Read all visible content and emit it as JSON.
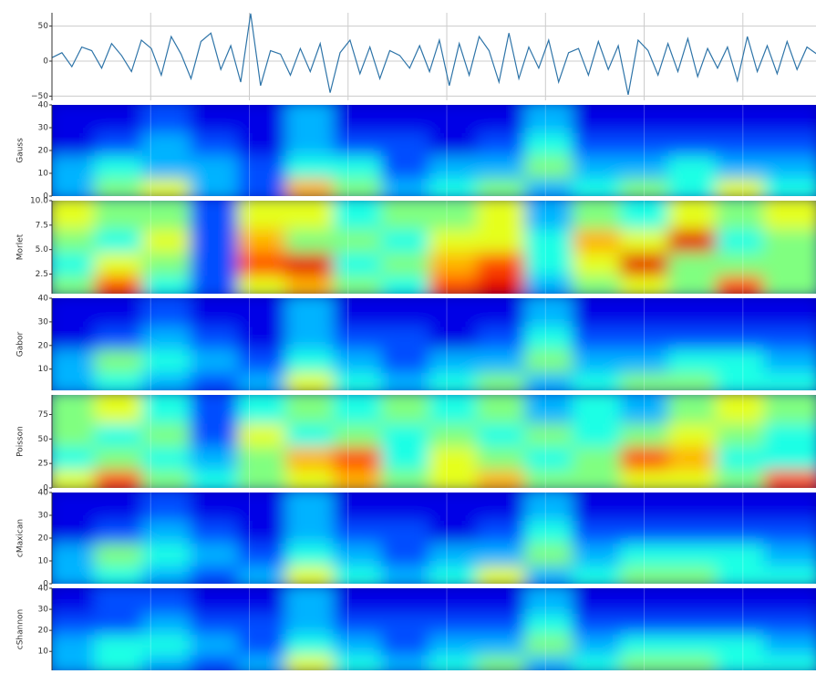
{
  "chart_data": [
    {
      "type": "line",
      "values": [
        5,
        12,
        -8,
        20,
        15,
        -10,
        25,
        8,
        -15,
        30,
        18,
        -20,
        35,
        10,
        -25,
        28,
        40,
        -12,
        22,
        -30,
        68,
        -35,
        15,
        10,
        -20,
        18,
        -15,
        25,
        -45,
        12,
        30,
        -18,
        20,
        -25,
        15,
        8,
        -10,
        22,
        -15,
        30,
        -35,
        25,
        -20,
        35,
        15,
        -30,
        40,
        -25,
        20,
        -10,
        30,
        -30,
        12,
        18,
        -20,
        28,
        -12,
        22,
        -48,
        30,
        15,
        -20,
        25,
        -15,
        32,
        -22,
        18,
        -10,
        20,
        -28,
        35,
        -15,
        22,
        -18,
        28,
        -12,
        20,
        10
      ],
      "color": "#2e74a8",
      "ylim": [
        -56,
        69
      ],
      "yticks": [
        {
          "value": -50,
          "label": "−50"
        },
        0,
        50
      ],
      "xlim": [
        0,
        775
      ],
      "xticks": [
        100,
        200,
        300,
        400,
        500,
        600,
        700
      ],
      "grid": true
    },
    {
      "type": "heatmap",
      "ylabel": "Gauss",
      "colormap": "jet",
      "ylim": [
        0,
        40
      ],
      "yticks": [
        0,
        10,
        20,
        30,
        40
      ],
      "xlim": [
        0,
        775
      ],
      "xticks": [
        100,
        200,
        300,
        400,
        500,
        600,
        700
      ],
      "values": [
        [
          0.3,
          0.5,
          0.6,
          0.3,
          0.2,
          0.7,
          0.5,
          0.3,
          0.4,
          0.5,
          0.3,
          0.4,
          0.5,
          0.4,
          0.6,
          0.4
        ],
        [
          0.3,
          0.4,
          0.3,
          0.3,
          0.2,
          0.4,
          0.4,
          0.2,
          0.3,
          0.3,
          0.5,
          0.3,
          0.3,
          0.4,
          0.3,
          0.3
        ],
        [
          0.1,
          0.2,
          0.3,
          0.2,
          0.1,
          0.3,
          0.2,
          0.2,
          0.1,
          0.2,
          0.4,
          0.2,
          0.2,
          0.2,
          0.2,
          0.2
        ],
        [
          0.1,
          0.1,
          0.2,
          0.1,
          0.1,
          0.3,
          0.1,
          0.1,
          0.1,
          0.1,
          0.3,
          0.1,
          0.1,
          0.1,
          0.1,
          0.1
        ]
      ]
    },
    {
      "type": "heatmap",
      "ylabel": "Morlet",
      "colormap": "jet",
      "ylim": [
        0.5,
        10
      ],
      "yticks": [
        2.5,
        {
          "value": 5,
          "label": "5.0"
        },
        7.5,
        {
          "value": 10,
          "label": "10.0"
        }
      ],
      "xlim": [
        0,
        775
      ],
      "xticks": [
        100,
        200,
        300,
        400,
        500,
        600,
        700
      ],
      "values": [
        [
          0.5,
          0.8,
          0.4,
          0.2,
          0.6,
          0.7,
          0.5,
          0.4,
          0.8,
          0.9,
          0.3,
          0.5,
          0.6,
          0.5,
          0.8,
          0.5
        ],
        [
          0.4,
          0.6,
          0.5,
          0.2,
          0.8,
          0.9,
          0.4,
          0.5,
          0.7,
          0.8,
          0.4,
          0.6,
          0.9,
          0.5,
          0.5,
          0.5
        ],
        [
          0.5,
          0.4,
          0.6,
          0.2,
          0.7,
          0.5,
          0.5,
          0.4,
          0.6,
          0.6,
          0.4,
          0.7,
          0.6,
          0.9,
          0.4,
          0.5
        ],
        [
          0.6,
          0.5,
          0.5,
          0.2,
          0.6,
          0.6,
          0.4,
          0.5,
          0.5,
          0.6,
          0.3,
          0.5,
          0.4,
          0.6,
          0.5,
          0.6
        ]
      ]
    },
    {
      "type": "heatmap",
      "ylabel": "Gabor",
      "colormap": "jet",
      "ylim": [
        1,
        40
      ],
      "yticks": [
        10,
        20,
        30,
        40
      ],
      "xlim": [
        0,
        775
      ],
      "xticks": [
        100,
        200,
        300,
        400,
        500,
        600,
        700
      ],
      "values": [
        [
          0.3,
          0.4,
          0.3,
          0.2,
          0.3,
          0.6,
          0.4,
          0.3,
          0.4,
          0.5,
          0.3,
          0.4,
          0.5,
          0.5,
          0.4,
          0.4
        ],
        [
          0.3,
          0.5,
          0.4,
          0.3,
          0.2,
          0.4,
          0.3,
          0.2,
          0.3,
          0.3,
          0.5,
          0.3,
          0.3,
          0.4,
          0.4,
          0.3
        ],
        [
          0.1,
          0.2,
          0.3,
          0.2,
          0.1,
          0.3,
          0.2,
          0.2,
          0.1,
          0.2,
          0.4,
          0.2,
          0.2,
          0.2,
          0.2,
          0.2
        ],
        [
          0.1,
          0.1,
          0.2,
          0.1,
          0.1,
          0.3,
          0.1,
          0.1,
          0.1,
          0.1,
          0.3,
          0.1,
          0.1,
          0.1,
          0.1,
          0.1
        ]
      ]
    },
    {
      "type": "heatmap",
      "ylabel": "Poisson",
      "colormap": "jet",
      "ylim": [
        0,
        95
      ],
      "yticks": [
        0,
        25,
        50,
        75
      ],
      "xlim": [
        0,
        775
      ],
      "xticks": [
        100,
        200,
        300,
        400,
        500,
        600,
        700
      ],
      "values": [
        [
          0.6,
          0.8,
          0.5,
          0.4,
          0.5,
          0.6,
          0.7,
          0.5,
          0.6,
          0.7,
          0.5,
          0.5,
          0.6,
          0.6,
          0.5,
          0.8
        ],
        [
          0.4,
          0.5,
          0.4,
          0.3,
          0.5,
          0.7,
          0.8,
          0.4,
          0.6,
          0.5,
          0.4,
          0.5,
          0.8,
          0.7,
          0.4,
          0.4
        ],
        [
          0.5,
          0.4,
          0.5,
          0.2,
          0.6,
          0.4,
          0.5,
          0.4,
          0.5,
          0.4,
          0.5,
          0.4,
          0.5,
          0.6,
          0.5,
          0.4
        ],
        [
          0.5,
          0.6,
          0.4,
          0.2,
          0.4,
          0.5,
          0.4,
          0.5,
          0.4,
          0.5,
          0.3,
          0.4,
          0.3,
          0.5,
          0.6,
          0.5
        ]
      ]
    },
    {
      "type": "heatmap",
      "ylabel": "cMaxican",
      "colormap": "jet",
      "ylim": [
        0,
        40
      ],
      "yticks": [
        0,
        10,
        20,
        30,
        40
      ],
      "xlim": [
        0,
        775
      ],
      "xticks": [
        100,
        200,
        300,
        400,
        500,
        600,
        700
      ],
      "values": [
        [
          0.3,
          0.4,
          0.3,
          0.2,
          0.3,
          0.6,
          0.4,
          0.3,
          0.4,
          0.6,
          0.3,
          0.4,
          0.5,
          0.5,
          0.4,
          0.4
        ],
        [
          0.3,
          0.5,
          0.4,
          0.3,
          0.2,
          0.4,
          0.3,
          0.2,
          0.3,
          0.3,
          0.5,
          0.3,
          0.4,
          0.4,
          0.4,
          0.3
        ],
        [
          0.1,
          0.2,
          0.3,
          0.2,
          0.1,
          0.3,
          0.2,
          0.2,
          0.1,
          0.2,
          0.4,
          0.2,
          0.2,
          0.2,
          0.2,
          0.2
        ],
        [
          0.1,
          0.1,
          0.2,
          0.1,
          0.1,
          0.3,
          0.1,
          0.1,
          0.1,
          0.1,
          0.3,
          0.1,
          0.1,
          0.1,
          0.1,
          0.1
        ]
      ]
    },
    {
      "type": "heatmap",
      "ylabel": "cShannon",
      "colormap": "jet",
      "ylim": [
        1,
        40
      ],
      "yticks": [
        10,
        20,
        30,
        40
      ],
      "xlim": [
        0,
        775
      ],
      "xticks": [
        100,
        200,
        300,
        400,
        500,
        600,
        700
      ],
      "values": [
        [
          0.3,
          0.4,
          0.3,
          0.2,
          0.3,
          0.6,
          0.4,
          0.3,
          0.4,
          0.5,
          0.3,
          0.4,
          0.5,
          0.5,
          0.4,
          0.4
        ],
        [
          0.3,
          0.4,
          0.4,
          0.3,
          0.2,
          0.4,
          0.3,
          0.2,
          0.3,
          0.3,
          0.5,
          0.3,
          0.4,
          0.4,
          0.4,
          0.3
        ],
        [
          0.2,
          0.2,
          0.3,
          0.2,
          0.2,
          0.3,
          0.2,
          0.2,
          0.2,
          0.2,
          0.4,
          0.2,
          0.2,
          0.2,
          0.2,
          0.2
        ],
        [
          0.1,
          0.2,
          0.2,
          0.1,
          0.1,
          0.3,
          0.1,
          0.1,
          0.1,
          0.1,
          0.3,
          0.1,
          0.1,
          0.1,
          0.1,
          0.1
        ]
      ]
    }
  ]
}
